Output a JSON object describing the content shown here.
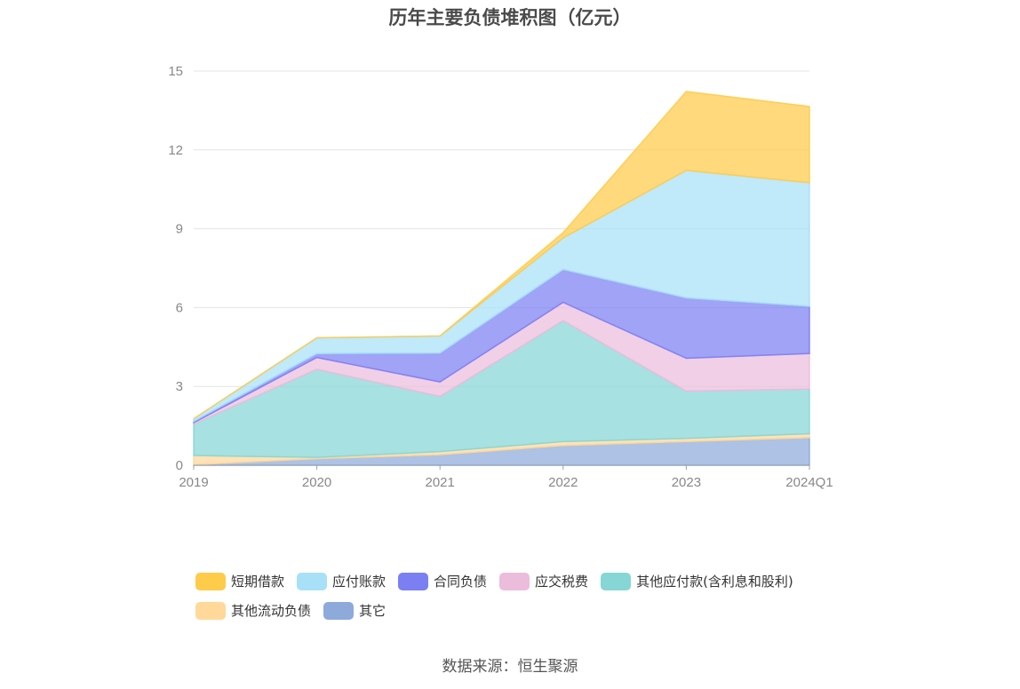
{
  "title": "历年主要负债堆积图（亿元）",
  "source": "数据来源：恒生聚源",
  "chart_data": {
    "type": "area",
    "stacked": true,
    "title": "历年主要负债堆积图（亿元）",
    "categories": [
      "2019",
      "2020",
      "2021",
      "2022",
      "2023",
      "2024Q1"
    ],
    "ylim": [
      0,
      15
    ],
    "yticks": [
      0,
      3,
      6,
      9,
      12,
      15
    ],
    "grid": true,
    "legend_position": "bottom",
    "series": [
      {
        "name": "其它",
        "color": "#8eaadb",
        "values": [
          0.02,
          0.25,
          0.4,
          0.75,
          0.9,
          1.05
        ]
      },
      {
        "name": "其他流动负债",
        "color": "#ffd89a",
        "values": [
          0.35,
          0.05,
          0.12,
          0.15,
          0.12,
          0.15
        ]
      },
      {
        "name": "其他应付款(含利息和股利)",
        "color": "#86d6d6",
        "values": [
          1.2,
          3.35,
          2.1,
          4.6,
          1.8,
          1.7
        ]
      },
      {
        "name": "应交税费",
        "color": "#ecbcdc",
        "values": [
          0.05,
          0.45,
          0.55,
          0.7,
          1.25,
          1.35
        ]
      },
      {
        "name": "合同负债",
        "color": "#7b7ff2",
        "values": [
          0.05,
          0.15,
          1.1,
          1.25,
          2.3,
          1.8
        ]
      },
      {
        "name": "应付账款",
        "color": "#a8e0f8",
        "values": [
          0.1,
          0.6,
          0.65,
          1.2,
          4.85,
          4.7
        ]
      },
      {
        "name": "短期借款",
        "color": "#ffcb4a",
        "values": [
          0.0,
          0.0,
          0.0,
          0.2,
          3.0,
          2.9
        ]
      }
    ]
  },
  "legend": {
    "rows": [
      [
        {
          "label": "短期借款",
          "color": "#ffcb4a"
        },
        {
          "label": "应付账款",
          "color": "#a8e0f8"
        },
        {
          "label": "合同负债",
          "color": "#7b7ff2"
        },
        {
          "label": "应交税费",
          "color": "#ecbcdc"
        },
        {
          "label": "其他应付款(含利息和股利)",
          "color": "#86d6d6"
        }
      ],
      [
        {
          "label": "其他流动负债",
          "color": "#ffd89a"
        },
        {
          "label": "其它",
          "color": "#8eaadb"
        }
      ]
    ]
  }
}
